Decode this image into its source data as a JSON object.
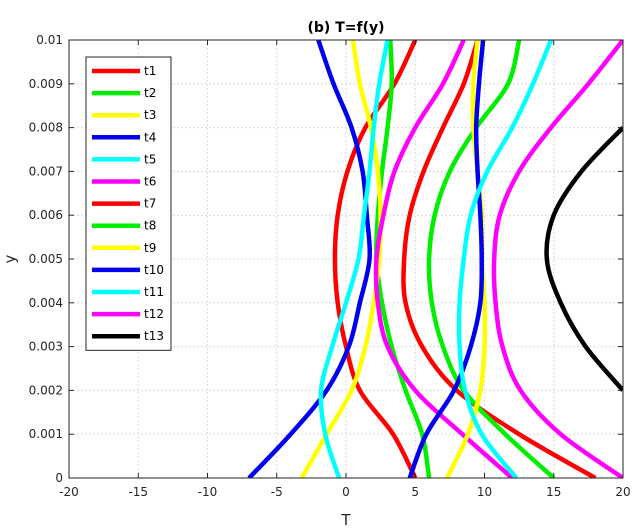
{
  "chart_data": {
    "type": "line",
    "title": "(b) T=f(y)",
    "xlabel": "T",
    "ylabel": "y",
    "xlim": [
      -20,
      20
    ],
    "ylim": [
      0,
      0.01
    ],
    "xticks": [
      "-20",
      "-15",
      "-10",
      "-5",
      "0",
      "5",
      "10",
      "15",
      "20"
    ],
    "yticks": [
      "0",
      "0.001",
      "0.002",
      "0.003",
      "0.004",
      "0.005",
      "0.006",
      "0.007",
      "0.008",
      "0.009",
      "0.01"
    ],
    "xtick_values": [
      -20,
      -15,
      -10,
      -5,
      0,
      5,
      10,
      15,
      20
    ],
    "ytick_values": [
      0,
      0.001,
      0.002,
      0.003,
      0.004,
      0.005,
      0.006,
      0.007,
      0.008,
      0.009,
      0.01
    ],
    "grid": true,
    "legend_position": "top-left",
    "y_samples": [
      0,
      0.001,
      0.002,
      0.003,
      0.004,
      0.005,
      0.006,
      0.007,
      0.008,
      0.009,
      0.01
    ],
    "series": [
      {
        "name": "t1",
        "color": "#ff0000",
        "x": [
          5.0,
          3.4,
          1.0,
          0.0,
          -0.6,
          -0.8,
          -0.6,
          0.1,
          1.4,
          3.5,
          5.0
        ]
      },
      {
        "name": "t2",
        "color": "#00ee00",
        "x": [
          6.0,
          5.5,
          4.3,
          3.3,
          2.6,
          2.2,
          2.3,
          2.6,
          3.0,
          3.3,
          3.2
        ]
      },
      {
        "name": "t3",
        "color": "#ffff00",
        "x": [
          -3.2,
          -1.4,
          0.4,
          1.4,
          2.0,
          2.4,
          2.5,
          2.3,
          1.8,
          1.0,
          0.5
        ]
      },
      {
        "name": "t4",
        "color": "#0000ee",
        "x": [
          -7.0,
          -4.0,
          -1.4,
          0.2,
          1.0,
          1.7,
          1.5,
          1.2,
          0.4,
          -0.9,
          -2.0
        ]
      },
      {
        "name": "t5",
        "color": "#00ffff",
        "x": [
          -0.5,
          -1.5,
          -1.8,
          -1.0,
          0.0,
          0.9,
          1.3,
          1.7,
          2.0,
          2.4,
          3.0
        ]
      },
      {
        "name": "t6",
        "color": "#ff00ff",
        "x": [
          12.0,
          8.4,
          5.0,
          3.0,
          2.3,
          2.2,
          2.7,
          3.5,
          5.0,
          7.0,
          8.5
        ]
      },
      {
        "name": "t7",
        "color": "#ff0000",
        "x": [
          18.0,
          12.5,
          8.0,
          5.5,
          4.3,
          4.2,
          4.6,
          5.6,
          7.0,
          8.5,
          9.5
        ]
      },
      {
        "name": "t8",
        "color": "#00ee00",
        "x": [
          15.0,
          11.5,
          8.5,
          7.0,
          6.2,
          6.0,
          6.4,
          7.5,
          9.4,
          11.7,
          12.5
        ]
      },
      {
        "name": "t9",
        "color": "#ffff00",
        "x": [
          7.3,
          8.8,
          9.7,
          10.0,
          10.0,
          9.8,
          9.8,
          9.5,
          9.2,
          9.2,
          9.5
        ]
      },
      {
        "name": "t10",
        "color": "#0000ee",
        "x": [
          4.6,
          5.8,
          7.8,
          9.0,
          9.7,
          9.8,
          9.7,
          9.5,
          9.4,
          9.6,
          9.9
        ]
      },
      {
        "name": "t11",
        "color": "#00ffff",
        "x": [
          12.3,
          9.8,
          8.6,
          8.2,
          8.2,
          8.5,
          9.0,
          10.2,
          12.0,
          13.5,
          14.8
        ]
      },
      {
        "name": "t12",
        "color": "#ff00ff",
        "x": [
          20.0,
          15.5,
          12.6,
          11.3,
          10.8,
          10.7,
          11.1,
          12.5,
          14.8,
          17.5,
          20.0
        ]
      },
      {
        "name": "t13",
        "color": "#000000",
        "x": [
          null,
          null,
          20.0,
          17.3,
          15.5,
          14.5,
          15.0,
          17.0,
          20.0,
          null,
          null
        ]
      }
    ]
  }
}
